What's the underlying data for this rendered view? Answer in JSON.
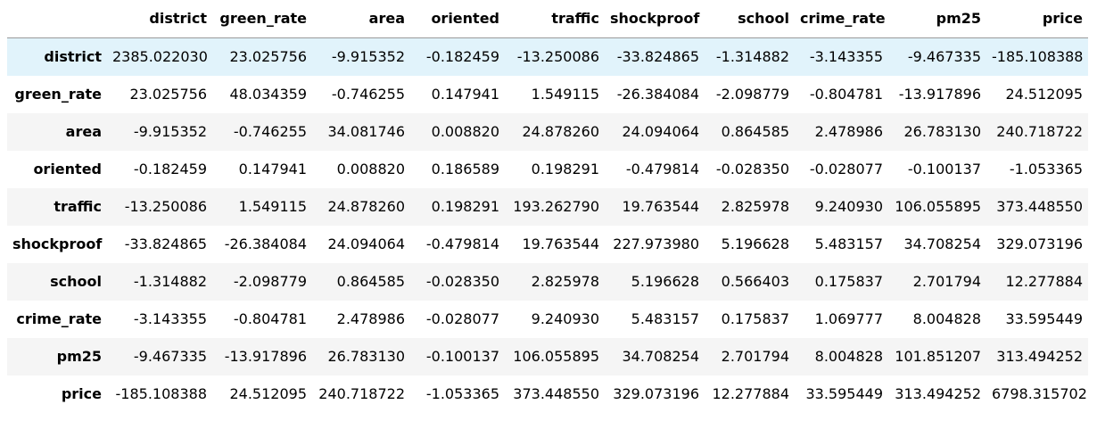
{
  "columns": [
    "district",
    "green_rate",
    "area",
    "oriented",
    "traffic",
    "shockproof",
    "school",
    "crime_rate",
    "pm25",
    "price"
  ],
  "rows": [
    {
      "label": "district",
      "values": [
        "2385.022030",
        "23.025756",
        "-9.915352",
        "-0.182459",
        "-13.250086",
        "-33.824865",
        "-1.314882",
        "-3.143355",
        "-9.467335",
        "-185.108388"
      ]
    },
    {
      "label": "green_rate",
      "values": [
        "23.025756",
        "48.034359",
        "-0.746255",
        "0.147941",
        "1.549115",
        "-26.384084",
        "-2.098779",
        "-0.804781",
        "-13.917896",
        "24.512095"
      ]
    },
    {
      "label": "area",
      "values": [
        "-9.915352",
        "-0.746255",
        "34.081746",
        "0.008820",
        "24.878260",
        "24.094064",
        "0.864585",
        "2.478986",
        "26.783130",
        "240.718722"
      ]
    },
    {
      "label": "oriented",
      "values": [
        "-0.182459",
        "0.147941",
        "0.008820",
        "0.186589",
        "0.198291",
        "-0.479814",
        "-0.028350",
        "-0.028077",
        "-0.100137",
        "-1.053365"
      ]
    },
    {
      "label": "traffic",
      "values": [
        "-13.250086",
        "1.549115",
        "24.878260",
        "0.198291",
        "193.262790",
        "19.763544",
        "2.825978",
        "9.240930",
        "106.055895",
        "373.448550"
      ]
    },
    {
      "label": "shockproof",
      "values": [
        "-33.824865",
        "-26.384084",
        "24.094064",
        "-0.479814",
        "19.763544",
        "227.973980",
        "5.196628",
        "5.483157",
        "34.708254",
        "329.073196"
      ]
    },
    {
      "label": "school",
      "values": [
        "-1.314882",
        "-2.098779",
        "0.864585",
        "-0.028350",
        "2.825978",
        "5.196628",
        "0.566403",
        "0.175837",
        "2.701794",
        "12.277884"
      ]
    },
    {
      "label": "crime_rate",
      "values": [
        "-3.143355",
        "-0.804781",
        "2.478986",
        "-0.028077",
        "9.240930",
        "5.483157",
        "0.175837",
        "1.069777",
        "8.004828",
        "33.595449"
      ]
    },
    {
      "label": "pm25",
      "values": [
        "-9.467335",
        "-13.917896",
        "26.783130",
        "-0.100137",
        "106.055895",
        "34.708254",
        "2.701794",
        "8.004828",
        "101.851207",
        "313.494252"
      ]
    },
    {
      "label": "price",
      "values": [
        "-185.108388",
        "24.512095",
        "240.718722",
        "-1.053365",
        "373.448550",
        "329.073196",
        "12.277884",
        "33.595449",
        "313.494252",
        "6798.315702"
      ]
    }
  ],
  "hovered_row": 0,
  "colors": {
    "stripe": "#f5f5f5",
    "hover": "#e1f3fb",
    "header_rule": "#9a9a9a"
  }
}
